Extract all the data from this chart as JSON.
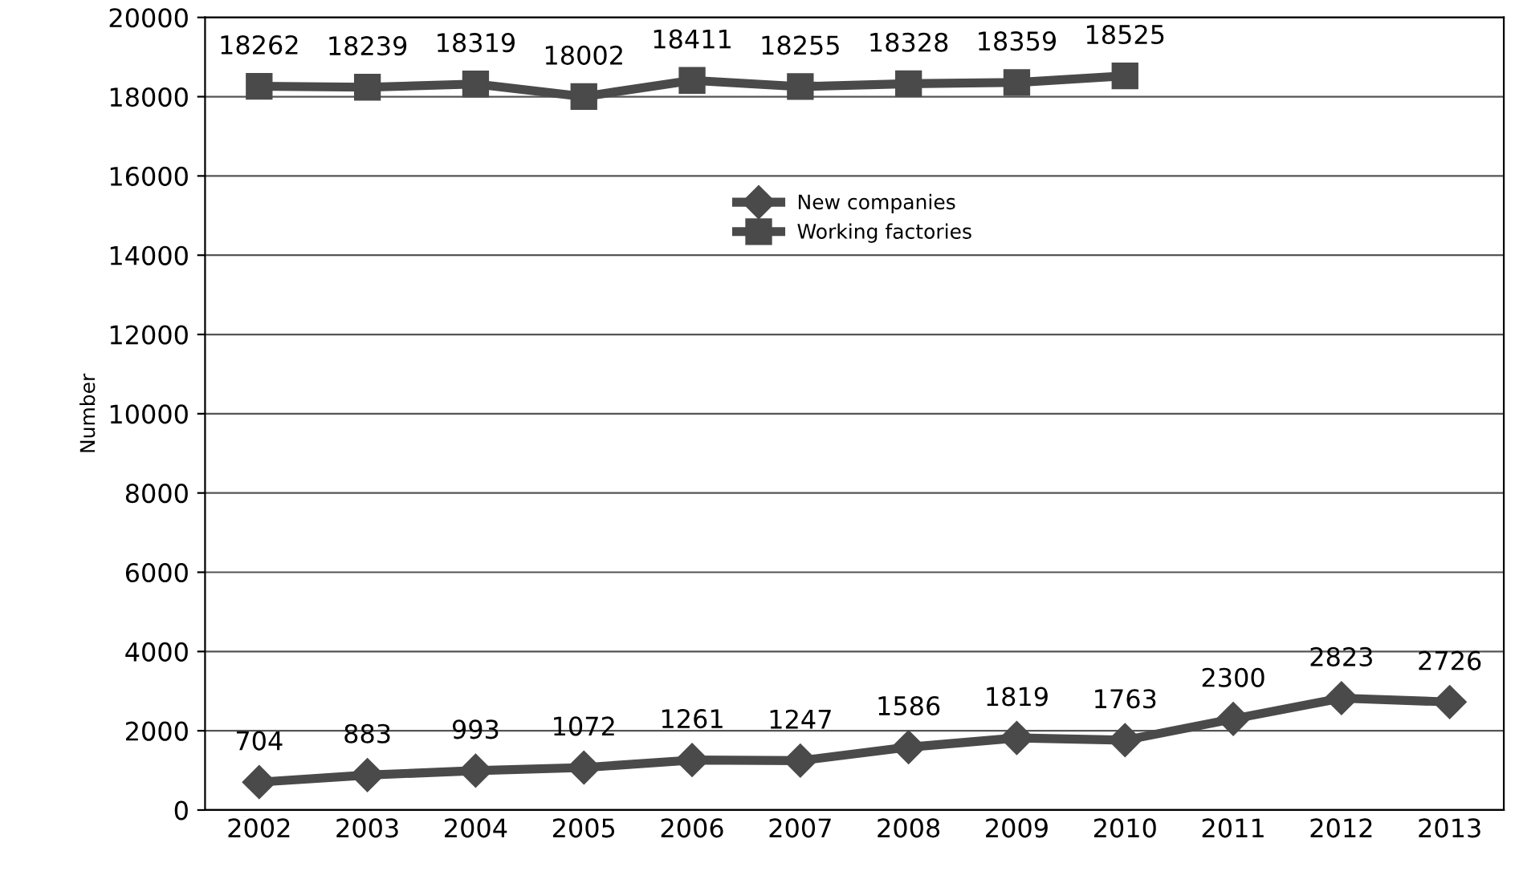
{
  "chart_data": {
    "type": "line",
    "ylabel": "Number",
    "categories": [
      "2002",
      "2003",
      "2004",
      "2005",
      "2006",
      "2007",
      "2008",
      "2009",
      "2010",
      "2011",
      "2012",
      "2013"
    ],
    "series": [
      {
        "name": "New companies",
        "color": "#4a4a4a",
        "marker": "diamond",
        "values": [
          704,
          883,
          993,
          1072,
          1261,
          1247,
          1586,
          1819,
          1763,
          2300,
          2823,
          2726
        ]
      },
      {
        "name": "Working factories",
        "color": "#4a4a4a",
        "marker": "square",
        "values": [
          18262,
          18239,
          18319,
          18002,
          18411,
          18255,
          18328,
          18359,
          18525,
          null,
          null,
          null
        ]
      }
    ],
    "ylim": [
      0,
      20000
    ],
    "yticks": [
      0,
      2000,
      4000,
      6000,
      8000,
      10000,
      12000,
      14000,
      16000,
      18000,
      20000
    ],
    "grid": "y",
    "legend": "top",
    "data_labels": true,
    "line_style": "solid"
  }
}
